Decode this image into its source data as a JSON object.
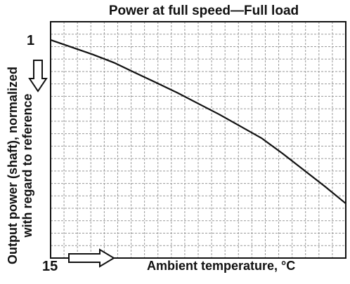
{
  "chart_data": {
    "type": "line",
    "title": "Power at full speed—Full load",
    "xlabel": "Ambient temperature, °C",
    "ylabel_line1": "Output power (shaft), normalized",
    "ylabel_line2": "with regard to reference",
    "x_tick_label": "15",
    "y_tick_label": "1",
    "xlim": [
      15,
      50
    ],
    "ylim": [
      0.76,
      1.02
    ],
    "grid": true,
    "series": [
      {
        "x": [
          15,
          17.5,
          20,
          22.5,
          25,
          27.5,
          30,
          32.5,
          35,
          37.5,
          40,
          42.5,
          45,
          47.5,
          50
        ],
        "y": [
          1.0,
          0.992,
          0.984,
          0.975,
          0.964,
          0.953,
          0.942,
          0.93,
          0.918,
          0.905,
          0.892,
          0.875,
          0.857,
          0.839,
          0.82
        ],
        "color": "#111111"
      }
    ]
  },
  "colors": {
    "line": "#111111",
    "grid": "#9a9a9a",
    "arrow_fill": "#ffffff",
    "arrow_stroke": "#111111"
  }
}
